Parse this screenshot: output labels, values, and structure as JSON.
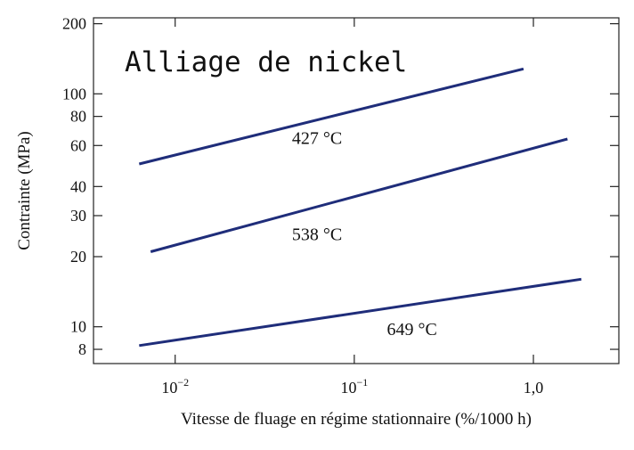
{
  "chart_data": {
    "type": "line",
    "title": "Alliage de nickel",
    "xlabel": "Vitesse de fluage en régime stationnaire (%/1000 h)",
    "ylabel": "Contrainte (MPa)",
    "x_scale": "log",
    "y_scale": "log",
    "xlim": [
      0.0035,
      3.0
    ],
    "ylim": [
      6.95,
      212
    ],
    "x_ticks": [
      {
        "value": 0.01,
        "base": "10",
        "exp": "−2"
      },
      {
        "value": 0.1,
        "base": "10",
        "exp": "−1"
      },
      {
        "value": 1.0,
        "label": "1,0"
      }
    ],
    "y_ticks": [
      {
        "value": 8,
        "label": "8"
      },
      {
        "value": 10,
        "label": "10"
      },
      {
        "value": 20,
        "label": "20"
      },
      {
        "value": 30,
        "label": "30"
      },
      {
        "value": 40,
        "label": "40"
      },
      {
        "value": 60,
        "label": "60"
      },
      {
        "value": 80,
        "label": "80"
      },
      {
        "value": 100,
        "label": "100"
      },
      {
        "value": 200,
        "label": "200"
      }
    ],
    "grid": false,
    "line_color": "#1f2d7a",
    "series": [
      {
        "name": "427 °C",
        "x": [
          0.0063,
          0.88
        ],
        "y": [
          50,
          128
        ],
        "label_at": {
          "x": 0.062,
          "y": 61
        }
      },
      {
        "name": "538 °C",
        "x": [
          0.0073,
          1.55
        ],
        "y": [
          21,
          64
        ],
        "label_at": {
          "x": 0.062,
          "y": 23.5
        }
      },
      {
        "name": "649 °C",
        "x": [
          0.0063,
          1.85
        ],
        "y": [
          8.3,
          16
        ],
        "label_at": {
          "x": 0.21,
          "y": 9.2
        }
      }
    ]
  }
}
